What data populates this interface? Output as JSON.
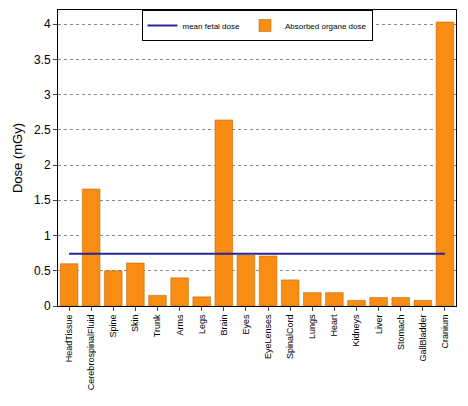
{
  "chart_data": {
    "type": "bar",
    "y_label": "Dose (mGy)",
    "categories": [
      "HeadTissue",
      "CerebrospinalFluid",
      "Spine",
      "Skin",
      "Trunk",
      "Arms",
      "Legs",
      "Brain",
      "Eyes",
      "EyeLenses",
      "SpinalCord",
      "Lungs",
      "Heart",
      "Kidneys",
      "Liver",
      "Stomach",
      "GallBladder",
      "Cranium"
    ],
    "series": [
      {
        "name": "Absorbed organe dose",
        "type": "bar",
        "color": "#f98c12",
        "values": [
          0.6,
          1.66,
          0.5,
          0.61,
          0.15,
          0.4,
          0.13,
          2.64,
          0.72,
          0.71,
          0.37,
          0.19,
          0.19,
          0.08,
          0.12,
          0.12,
          0.08,
          4.03
        ]
      },
      {
        "name": "mean fetal dose",
        "type": "line",
        "color": "#26269a",
        "values": [
          0.74,
          0.74,
          0.74,
          0.74,
          0.74,
          0.74,
          0.74,
          0.74,
          0.74,
          0.74,
          0.74,
          0.74,
          0.74,
          0.74,
          0.74,
          0.74,
          0.74,
          0.74
        ]
      }
    ],
    "ylim": [
      0,
      4.2
    ],
    "yticks": [
      0,
      {
        "value": 0.5,
        "label": "0.5"
      },
      1,
      {
        "value": 1.5,
        "label": "1.5"
      },
      2,
      {
        "value": 2.5,
        "label": "2.5"
      },
      3,
      {
        "value": 3.5,
        "label": "3.5"
      },
      4
    ],
    "grid": true,
    "legend": "top"
  }
}
